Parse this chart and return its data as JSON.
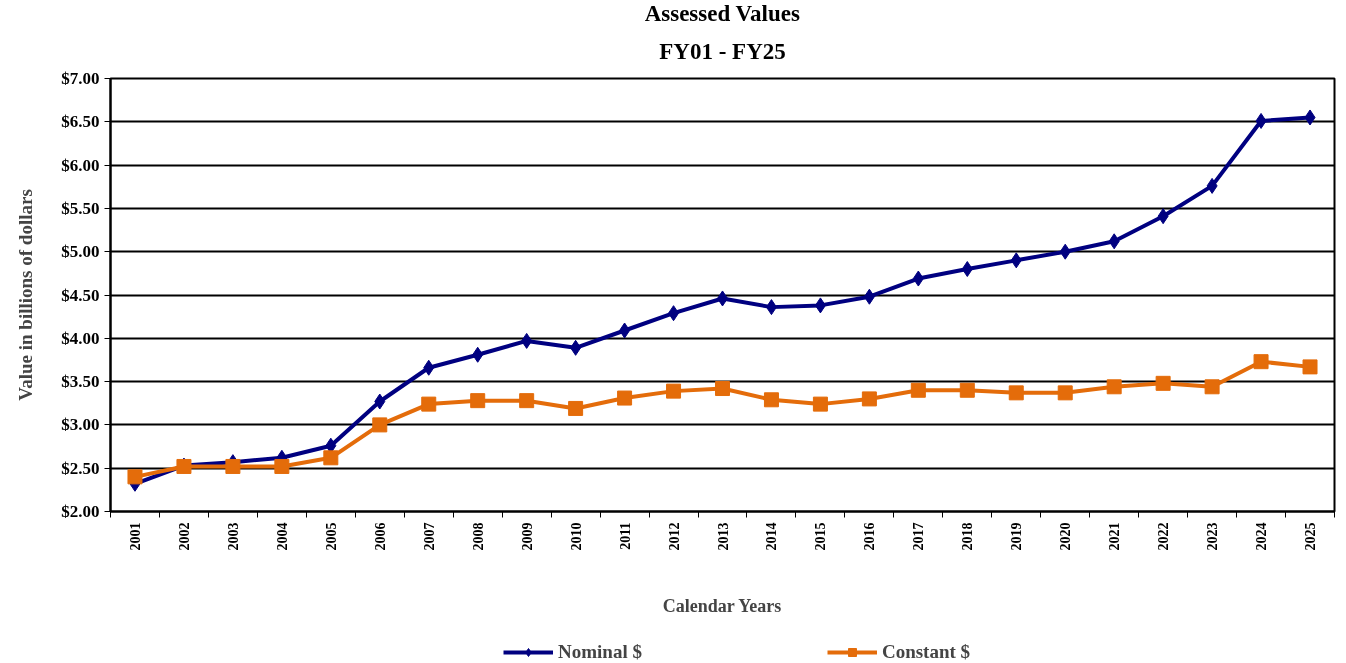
{
  "chart_data": {
    "type": "line",
    "title": "Assessed Values",
    "subtitle": "FY01 - FY25",
    "xlabel": "Calendar Years",
    "ylabel": "Value in billions of dollars",
    "categories": [
      "2001",
      "2002",
      "2003",
      "2004",
      "2005",
      "2006",
      "2007",
      "2008",
      "2009",
      "2010",
      "2011",
      "2012",
      "2013",
      "2014",
      "2015",
      "2016",
      "2017",
      "2018",
      "2019",
      "2020",
      "2021",
      "2022",
      "2023",
      "2024",
      "2025"
    ],
    "series": [
      {
        "name": "Nominal $",
        "color": "#000080",
        "marker": "diamond",
        "values": [
          2.32,
          2.53,
          2.57,
          2.62,
          2.76,
          3.27,
          3.66,
          3.81,
          3.97,
          3.89,
          4.09,
          4.29,
          4.46,
          4.36,
          4.38,
          4.48,
          4.69,
          4.8,
          4.9,
          5.0,
          5.12,
          5.41,
          5.76,
          6.51,
          6.55
        ]
      },
      {
        "name": "Constant $",
        "color": "#e46c0a",
        "marker": "square",
        "values": [
          2.4,
          2.52,
          2.52,
          2.52,
          2.62,
          3.0,
          3.24,
          3.28,
          3.28,
          3.19,
          3.31,
          3.39,
          3.42,
          3.29,
          3.24,
          3.3,
          3.4,
          3.4,
          3.37,
          3.37,
          3.44,
          3.48,
          3.44,
          3.73,
          3.67
        ]
      }
    ],
    "ylim": [
      2,
      7
    ],
    "yticks": [
      {
        "value": 2,
        "label": "$2.00"
      },
      {
        "value": 2.5,
        "label": "$2.50"
      },
      {
        "value": 3,
        "label": "$3.00"
      },
      {
        "value": 3.5,
        "label": "$3.50"
      },
      {
        "value": 4,
        "label": "$4.00"
      },
      {
        "value": 4.5,
        "label": "$4.50"
      },
      {
        "value": 5,
        "label": "$5.00"
      },
      {
        "value": 5.5,
        "label": "$5.50"
      },
      {
        "value": 6,
        "label": "$6.00"
      },
      {
        "value": 6.5,
        "label": "$6.50"
      },
      {
        "value": 7,
        "label": "$7.00"
      }
    ],
    "grid": "y",
    "legend": "bottom",
    "line_style": "solid"
  }
}
